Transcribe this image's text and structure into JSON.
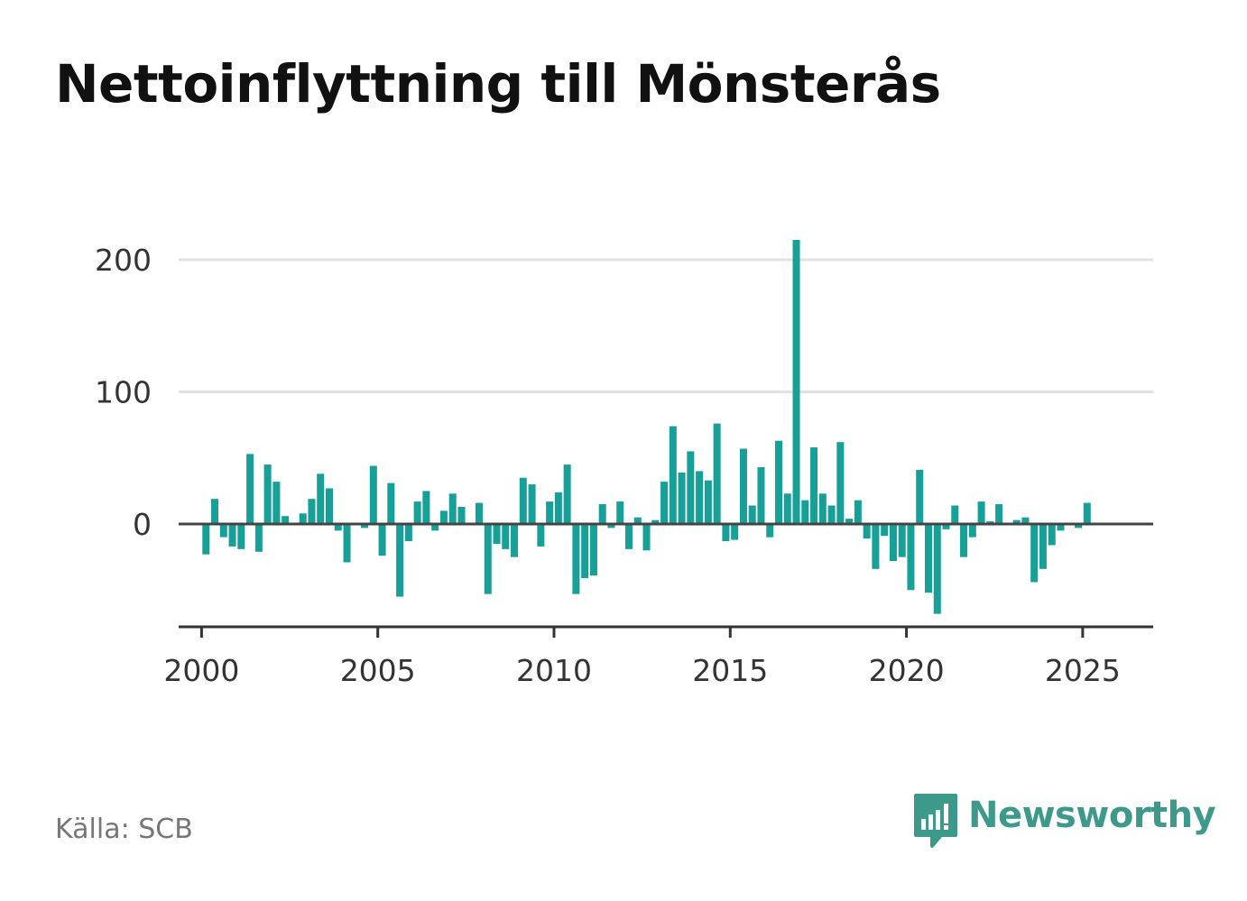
{
  "title": "Nettoinflyttning till Mönsterås",
  "source": "Källa: SCB",
  "brand": {
    "name": "Newsworthy",
    "icon": "newsworthy-logo-icon",
    "color": "#3d9a8b"
  },
  "colors": {
    "bar": "#16a097",
    "zero_line": "#444444",
    "grid": "#e2e2e2",
    "axis": "#333333"
  },
  "chart_data": {
    "type": "bar",
    "title": "Nettoinflyttning till Mönsterås",
    "xlabel": "",
    "ylabel": "",
    "x_axis": "time (quarters)",
    "x_start": "2000 Q1",
    "frequency": "quarterly",
    "xlim": [
      1999.35,
      2027.0
    ],
    "ylim": [
      -78,
      200
    ],
    "yticks": [
      0,
      100,
      200
    ],
    "ytick_labels": [
      "0",
      "100",
      "200"
    ],
    "xticks": [
      2000,
      2005,
      2010,
      2015,
      2020,
      2025
    ],
    "xtick_labels": [
      "2000",
      "2005",
      "2010",
      "2015",
      "2020",
      "2025"
    ],
    "grid": "horizontal",
    "values": [
      -23,
      19,
      -10,
      -17,
      -19,
      53,
      -21,
      45,
      32,
      6,
      0,
      8,
      19,
      38,
      27,
      -5,
      -29,
      0,
      -3,
      44,
      -24,
      31,
      -55,
      -13,
      17,
      25,
      -5,
      10,
      23,
      13,
      0,
      16,
      -53,
      -15,
      -19,
      -25,
      35,
      30,
      -17,
      17,
      24,
      45,
      -53,
      -41,
      -39,
      15,
      -3,
      17,
      -19,
      5,
      -20,
      3,
      32,
      74,
      39,
      55,
      40,
      33,
      76,
      -13,
      -12,
      57,
      14,
      43,
      -10,
      63,
      23,
      215,
      18,
      58,
      23,
      14,
      62,
      4,
      18,
      -11,
      -34,
      -9,
      -28,
      -25,
      -50,
      41,
      -52,
      -68,
      -4,
      14,
      -25,
      -10,
      17,
      2,
      15,
      0,
      3,
      5,
      -44,
      -34,
      -16,
      -5,
      1,
      -3,
      16
    ]
  }
}
